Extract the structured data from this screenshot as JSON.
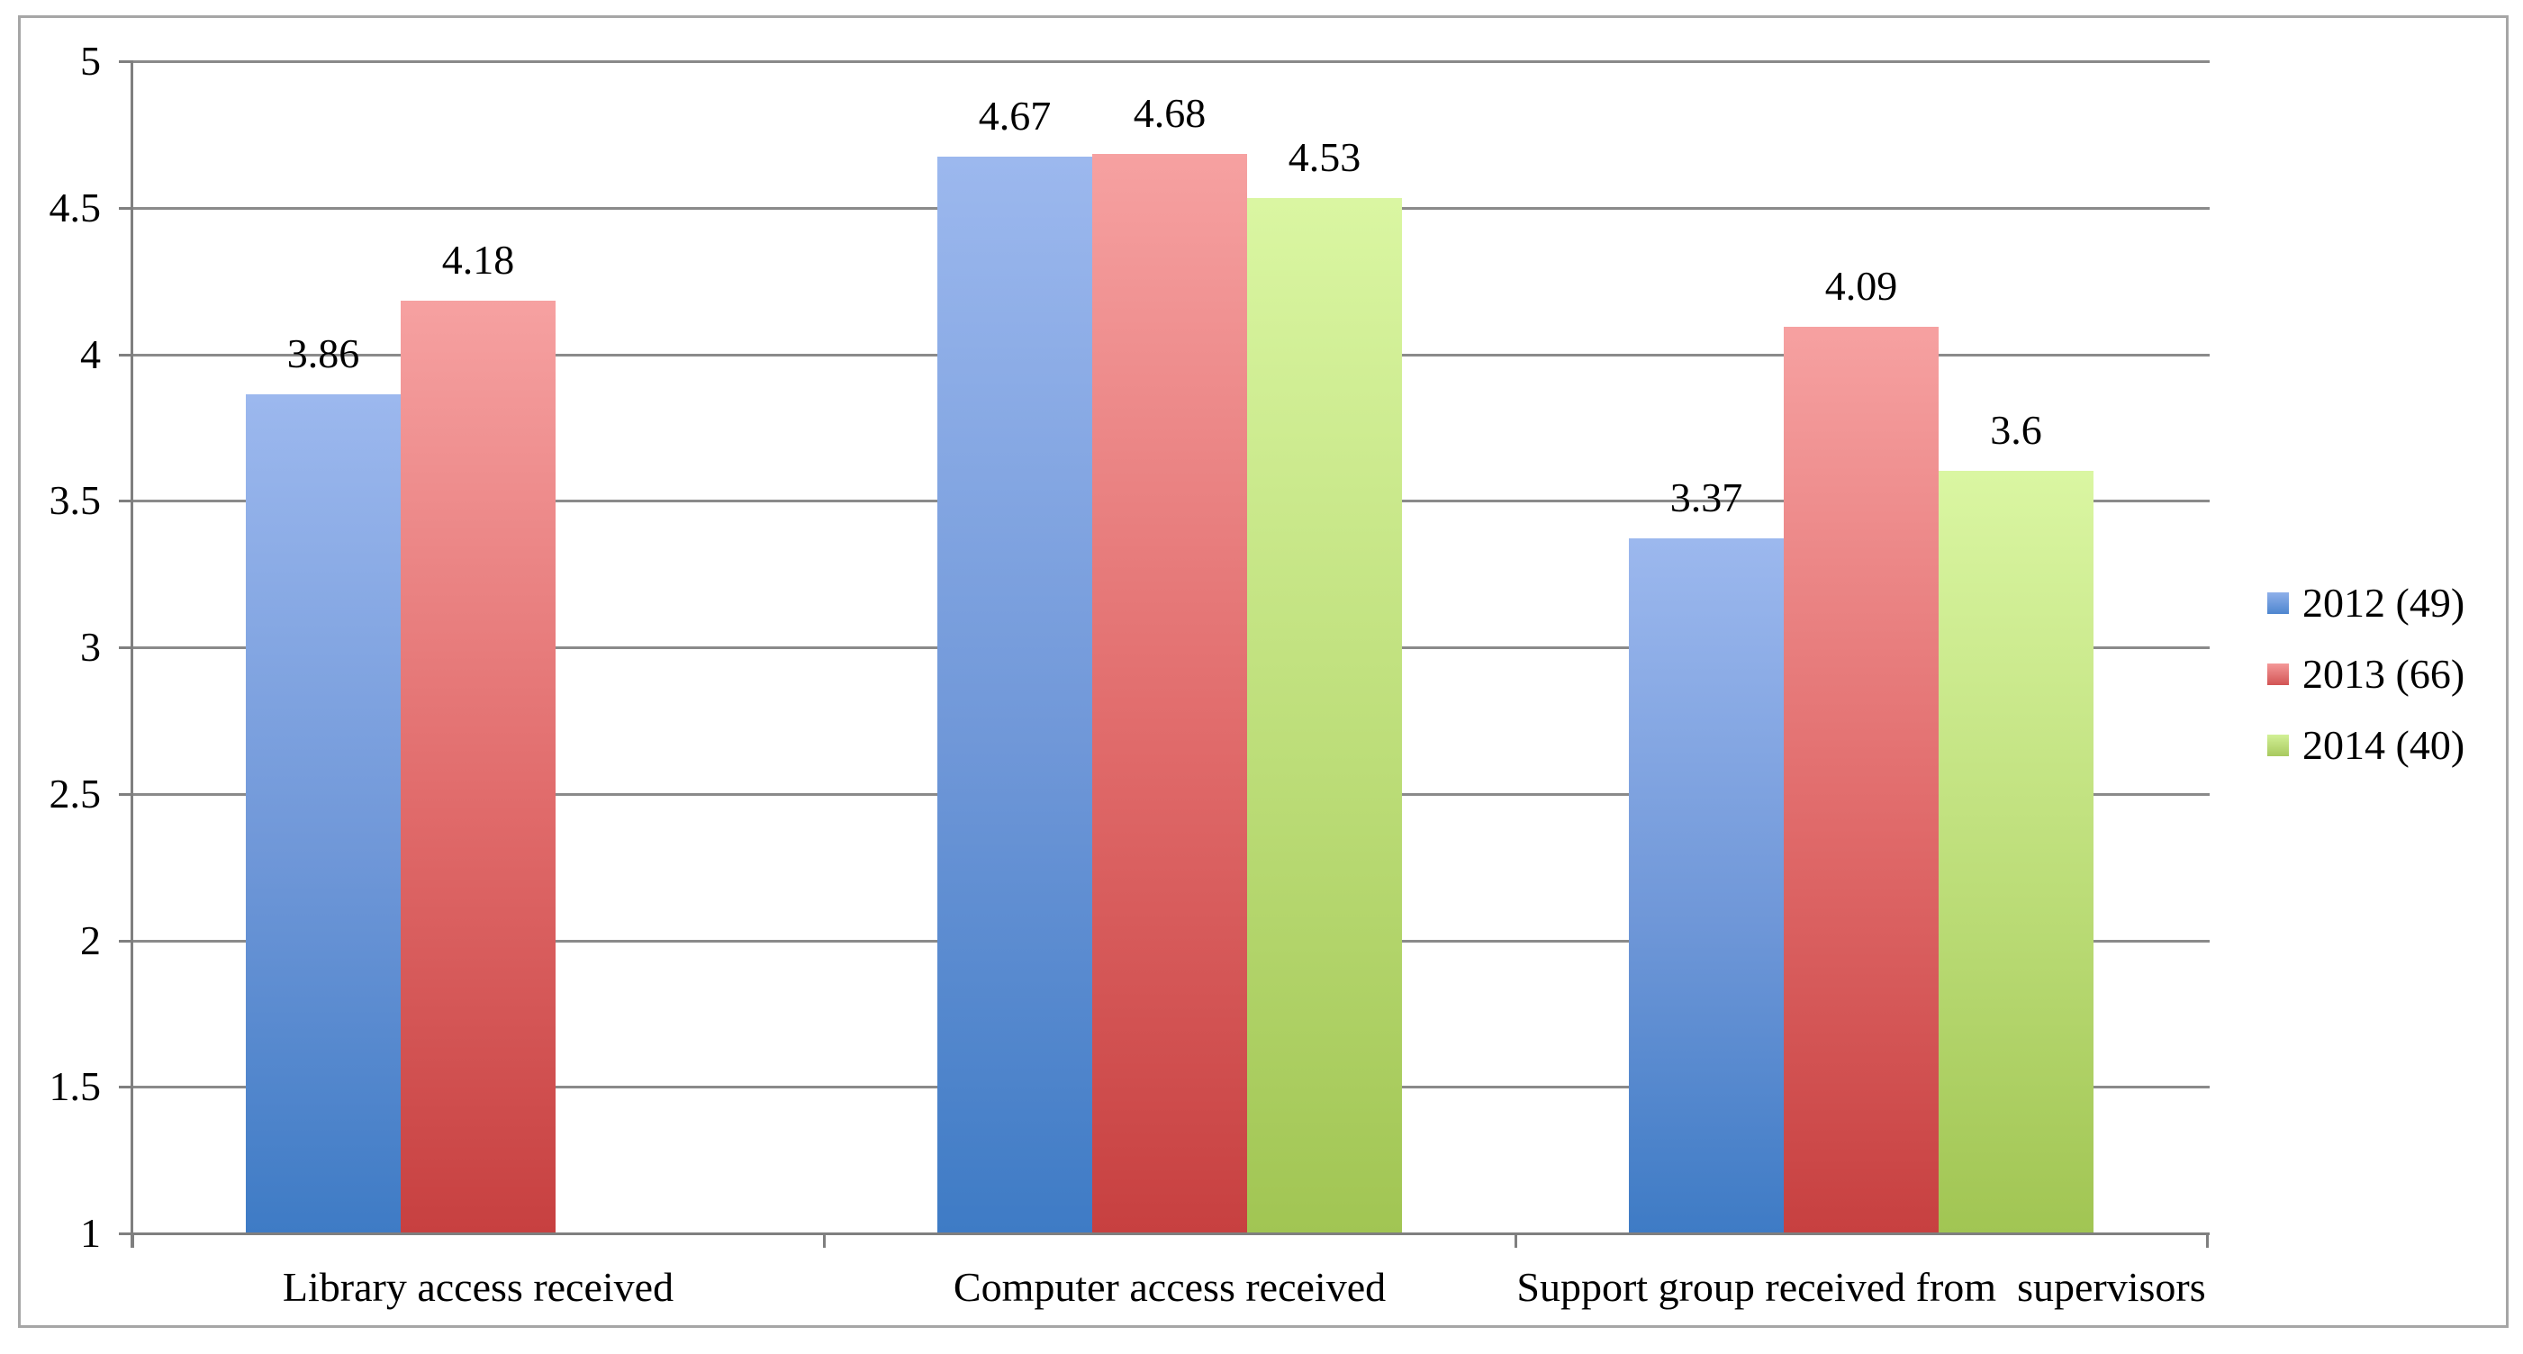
{
  "chart_data": {
    "type": "bar",
    "title": "",
    "categories": [
      "Library access received",
      "Computer access received",
      "Support group received from  supervisors"
    ],
    "series": [
      {
        "name": "2012 (49)",
        "values": [
          3.86,
          4.67,
          3.37
        ],
        "value_labels": [
          "3.86",
          "4.67",
          "3.37"
        ],
        "color_top": "#9cb8ee",
        "color_bottom": "#3e7bc5"
      },
      {
        "name": "2013 (66)",
        "values": [
          4.18,
          4.68,
          4.09
        ],
        "value_labels": [
          "4.18",
          "4.68",
          "4.09"
        ],
        "color_top": "#f6a1a1",
        "color_bottom": "#c74040"
      },
      {
        "name": "2014 (40)",
        "values": [
          null,
          4.53,
          3.6
        ],
        "value_labels": [
          null,
          "4.53",
          "3.6"
        ],
        "color_top": "#daf6a2",
        "color_bottom": "#a1c553"
      }
    ],
    "ylim": [
      1,
      5
    ],
    "yticks": [
      5,
      4.5,
      4,
      3.5,
      3,
      2.5,
      2,
      1.5,
      1
    ],
    "ytick_labels": [
      "5",
      "4.5",
      "4",
      "3.5",
      "3",
      "2.5",
      "2",
      "1.5",
      "1"
    ],
    "xlabel": "",
    "ylabel": "",
    "grid": "horizontal",
    "legend_position": "right",
    "bar_labels_shown": true,
    "colors": {
      "grid_line": "#8a8a8a",
      "axis_line": "#7f7f7f",
      "frame_border": "#a6a6a6",
      "text": "#000000",
      "background": "#ffffff"
    }
  }
}
